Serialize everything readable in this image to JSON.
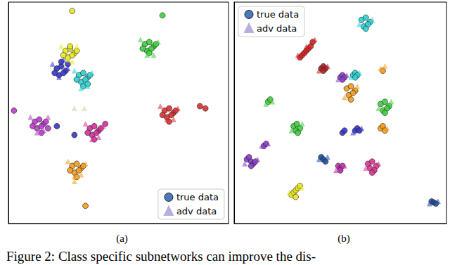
{
  "caption": "Figure 2: Class specific subnetworks can improve the dis-",
  "chart_data": [
    {
      "type": "scatter",
      "title": "(a)",
      "xlim": [
        0,
        100
      ],
      "ylim": [
        0,
        100
      ],
      "tick_labels": false,
      "legend": "lower right",
      "series": [
        {
          "name": "true data",
          "marker": "circle",
          "color": "#e8e820",
          "x": [
            26,
            28,
            30,
            27,
            29,
            31,
            25,
            28,
            29
          ],
          "y": [
            78,
            79,
            77,
            75,
            76,
            78,
            76,
            80,
            96
          ]
        },
        {
          "name": "adv data",
          "marker": "triangle",
          "color": "#e8e820",
          "x": [
            24,
            27,
            31,
            29
          ],
          "y": [
            80,
            74,
            80,
            73
          ]
        },
        {
          "name": "true data",
          "marker": "circle",
          "color": "#3ccf3c",
          "x": [
            62,
            64,
            66,
            63,
            65,
            67,
            61,
            64,
            70
          ],
          "y": [
            81,
            82,
            80,
            78,
            79,
            81,
            79,
            77,
            94
          ]
        },
        {
          "name": "adv data",
          "marker": "triangle",
          "color": "#3ccf3c",
          "x": [
            60,
            63,
            68,
            66
          ],
          "y": [
            83,
            76,
            82,
            76
          ]
        },
        {
          "name": "true data",
          "marker": "circle",
          "color": "#3535c8",
          "x": [
            22,
            24,
            26,
            23,
            25,
            21,
            24,
            27,
            30,
            22
          ],
          "y": [
            70,
            71,
            69,
            67,
            68,
            68,
            73,
            72,
            40,
            44
          ]
        },
        {
          "name": "adv data",
          "marker": "triangle",
          "color": "#3535c8",
          "x": [
            20,
            23,
            27,
            25
          ],
          "y": [
            72,
            66,
            70,
            74
          ]
        },
        {
          "name": "true data",
          "marker": "circle",
          "color": "#2ad0d0",
          "x": [
            32,
            34,
            36,
            33,
            35,
            37,
            34,
            31,
            36
          ],
          "y": [
            67,
            68,
            66,
            64,
            65,
            67,
            62,
            65,
            63
          ]
        },
        {
          "name": "adv data",
          "marker": "triangle",
          "color": "#2ad0d0",
          "x": [
            30,
            33,
            38,
            36
          ],
          "y": [
            69,
            61,
            68,
            62
          ]
        },
        {
          "name": "true data",
          "marker": "circle",
          "color": "#b83cc8",
          "x": [
            12,
            14,
            16,
            13,
            15,
            17,
            11,
            15,
            2.5,
            18
          ],
          "y": [
            46,
            47,
            45,
            43,
            44,
            46,
            44,
            41,
            51,
            43
          ]
        },
        {
          "name": "adv data",
          "marker": "triangle",
          "color": "#b83cc8",
          "x": [
            10,
            13,
            18,
            16
          ],
          "y": [
            48,
            41,
            48,
            42
          ]
        },
        {
          "name": "true data",
          "marker": "circle",
          "color": "#d0309a",
          "x": [
            37,
            39,
            41,
            38,
            40,
            42,
            36,
            39,
            44
          ],
          "y": [
            43,
            44,
            42,
            40,
            41,
            43,
            41,
            38,
            45
          ]
        },
        {
          "name": "adv data",
          "marker": "triangle",
          "color": "#d0309a",
          "x": [
            35,
            38,
            43,
            41
          ],
          "y": [
            45,
            38,
            44,
            39
          ]
        },
        {
          "name": "true data",
          "marker": "circle",
          "color": "#d83030",
          "x": [
            71,
            73,
            75,
            72,
            74,
            76,
            70,
            73,
            87,
            89.5
          ],
          "y": [
            51,
            52,
            50,
            48,
            49,
            51,
            49,
            46,
            53,
            52
          ]
        },
        {
          "name": "adv data",
          "marker": "triangle",
          "color": "#d83030",
          "x": [
            69,
            72,
            77,
            75
          ],
          "y": [
            53,
            47,
            52,
            47
          ]
        },
        {
          "name": "true data",
          "marker": "circle",
          "color": "#f59a1a",
          "x": [
            29,
            31,
            33,
            30,
            32,
            34,
            28,
            31,
            35
          ],
          "y": [
            26,
            27,
            25,
            23,
            24,
            26,
            24,
            21,
            8
          ]
        },
        {
          "name": "adv data",
          "marker": "triangle",
          "color": "#f59a1a",
          "x": [
            27,
            30,
            35,
            33,
            30
          ],
          "y": [
            28,
            21,
            27,
            22,
            19
          ]
        },
        {
          "name": "adv data",
          "marker": "triangle",
          "color": "#d8cfa0",
          "x": [
            30,
            34.5
          ],
          "y": [
            52,
            52
          ]
        }
      ]
    },
    {
      "type": "scatter",
      "title": "(b)",
      "xlim": [
        0,
        100
      ],
      "ylim": [
        0,
        100
      ],
      "tick_labels": false,
      "legend": "upper left",
      "series": [
        {
          "name": "true data",
          "marker": "circle",
          "color": "#2ad0d0",
          "x": [
            60,
            62,
            64,
            61,
            63,
            62
          ],
          "y": [
            92,
            93,
            91,
            89,
            90,
            88
          ]
        },
        {
          "name": "adv data",
          "marker": "triangle",
          "color": "#2ad0d0",
          "x": [
            59,
            65
          ],
          "y": [
            90,
            92
          ]
        },
        {
          "name": "true data",
          "marker": "circle",
          "color": "#d82020",
          "x": [
            31,
            32,
            33,
            34,
            35,
            36,
            37
          ],
          "y": [
            75,
            76,
            77,
            78,
            79,
            80,
            82
          ]
        },
        {
          "name": "adv data",
          "marker": "triangle",
          "color": "#d82020",
          "x": [
            30,
            34,
            38
          ],
          "y": [
            76,
            80,
            83
          ]
        },
        {
          "name": "true data",
          "marker": "circle",
          "color": "#b02020",
          "x": [
            41,
            42,
            43,
            42
          ],
          "y": [
            70,
            71,
            70,
            69
          ]
        },
        {
          "name": "adv data",
          "marker": "triangle",
          "color": "#b02020",
          "x": [
            40,
            44
          ],
          "y": [
            69,
            71
          ]
        },
        {
          "name": "true data",
          "marker": "circle",
          "color": "#8a3cc8",
          "x": [
            50,
            51,
            52,
            51
          ],
          "y": [
            66,
            67,
            66,
            65
          ]
        },
        {
          "name": "adv data",
          "marker": "triangle",
          "color": "#8a3cc8",
          "x": [
            49,
            53
          ],
          "y": [
            65,
            67
          ]
        },
        {
          "name": "true data",
          "marker": "circle",
          "color": "#2ad0d0",
          "x": [
            56,
            57,
            58,
            57
          ],
          "y": [
            67,
            68,
            67,
            66
          ]
        },
        {
          "name": "adv data",
          "marker": "triangle",
          "color": "#2ad0d0",
          "x": [
            55,
            59
          ],
          "y": [
            66,
            68
          ]
        },
        {
          "name": "true data",
          "marker": "circle",
          "color": "#f59a1a",
          "x": [
            70
          ],
          "y": [
            69
          ]
        },
        {
          "name": "adv data",
          "marker": "triangle",
          "color": "#f59a1a",
          "x": [
            69,
            71
          ],
          "y": [
            70,
            71
          ]
        },
        {
          "name": "true data",
          "marker": "circle",
          "color": "#f59a1a",
          "x": [
            53,
            55,
            57,
            54,
            56,
            55
          ],
          "y": [
            61,
            62,
            60,
            58,
            59,
            56
          ]
        },
        {
          "name": "adv data",
          "marker": "triangle",
          "color": "#f59a1a",
          "x": [
            52,
            58
          ],
          "y": [
            57,
            62
          ]
        },
        {
          "name": "true data",
          "marker": "circle",
          "color": "#3ccf3c",
          "x": [
            69,
            71,
            73,
            70,
            72,
            71
          ],
          "y": [
            54,
            55,
            53,
            51,
            52,
            50
          ]
        },
        {
          "name": "adv data",
          "marker": "triangle",
          "color": "#3ccf3c",
          "x": [
            68,
            74
          ],
          "y": [
            52,
            55
          ]
        },
        {
          "name": "true data",
          "marker": "circle",
          "color": "#3ccf3c",
          "x": [
            16,
            17
          ],
          "y": [
            55,
            56
          ]
        },
        {
          "name": "adv data",
          "marker": "triangle",
          "color": "#3ccf3c",
          "x": [
            15,
            18
          ],
          "y": [
            54,
            55
          ]
        },
        {
          "name": "true data",
          "marker": "circle",
          "color": "#3ccf3c",
          "x": [
            28,
            29.5,
            31,
            29,
            30
          ],
          "y": [
            44,
            45,
            43,
            42,
            41
          ]
        },
        {
          "name": "adv data",
          "marker": "triangle",
          "color": "#3ccf3c",
          "x": [
            27,
            32
          ],
          "y": [
            42,
            45
          ]
        },
        {
          "name": "true data",
          "marker": "circle",
          "color": "#3535c8",
          "x": [
            51,
            52
          ],
          "y": [
            41,
            42
          ]
        },
        {
          "name": "true data",
          "marker": "circle",
          "color": "#3535c8",
          "x": [
            57,
            58,
            59
          ],
          "y": [
            42,
            43,
            42
          ]
        },
        {
          "name": "adv data",
          "marker": "triangle",
          "color": "#3535c8",
          "x": [
            56,
            60
          ],
          "y": [
            41,
            43
          ]
        },
        {
          "name": "true data",
          "marker": "circle",
          "color": "#f59a1a",
          "x": [
            69,
            70,
            71
          ],
          "y": [
            43,
            44,
            42
          ]
        },
        {
          "name": "adv data",
          "marker": "triangle",
          "color": "#f59a1a",
          "x": [
            72
          ],
          "y": [
            43
          ]
        },
        {
          "name": "true data",
          "marker": "circle",
          "color": "#8a3cc8",
          "x": [
            6,
            7,
            8,
            9,
            8,
            10
          ],
          "y": [
            29,
            30,
            28,
            27,
            26,
            28
          ]
        },
        {
          "name": "adv data",
          "marker": "triangle",
          "color": "#8a3cc8",
          "x": [
            5,
            11
          ],
          "y": [
            27,
            29
          ]
        },
        {
          "name": "true data",
          "marker": "circle",
          "color": "#8a3cc8",
          "x": [
            14,
            15
          ],
          "y": [
            35,
            36
          ]
        },
        {
          "name": "adv data",
          "marker": "triangle",
          "color": "#8a3cc8",
          "x": [
            13,
            16
          ],
          "y": [
            35,
            36
          ]
        },
        {
          "name": "true data",
          "marker": "circle",
          "color": "#2050a0",
          "x": [
            41,
            42,
            43
          ],
          "y": [
            30,
            29,
            28
          ]
        },
        {
          "name": "adv data",
          "marker": "triangle",
          "color": "#2050a0",
          "x": [
            40,
            44
          ],
          "y": [
            29,
            30
          ]
        },
        {
          "name": "true data",
          "marker": "circle",
          "color": "#c030b0",
          "x": [
            49,
            50,
            51,
            50
          ],
          "y": [
            26,
            25,
            26,
            24
          ]
        },
        {
          "name": "adv data",
          "marker": "triangle",
          "color": "#c030b0",
          "x": [
            48,
            52
          ],
          "y": [
            24,
            26
          ]
        },
        {
          "name": "true data",
          "marker": "circle",
          "color": "#e03090",
          "x": [
            63,
            65,
            67,
            64,
            66,
            65
          ],
          "y": [
            27,
            28,
            26,
            25,
            24,
            23
          ]
        },
        {
          "name": "adv data",
          "marker": "triangle",
          "color": "#e03090",
          "x": [
            62,
            68
          ],
          "y": [
            25,
            27
          ]
        },
        {
          "name": "true data",
          "marker": "circle",
          "color": "#e8e820",
          "x": [
            27,
            28,
            29,
            30,
            31,
            29
          ],
          "y": [
            13,
            14,
            15,
            16,
            17,
            12
          ]
        },
        {
          "name": "adv data",
          "marker": "triangle",
          "color": "#e8e820",
          "x": [
            26,
            32
          ],
          "y": [
            14,
            16
          ]
        },
        {
          "name": "true data",
          "marker": "circle",
          "color": "#2050a0",
          "x": [
            93,
            94,
            95
          ],
          "y": [
            10,
            9.5,
            9
          ]
        },
        {
          "name": "adv data",
          "marker": "triangle",
          "color": "#2050a0",
          "x": [
            92,
            96
          ],
          "y": [
            9,
            10
          ]
        }
      ]
    }
  ]
}
